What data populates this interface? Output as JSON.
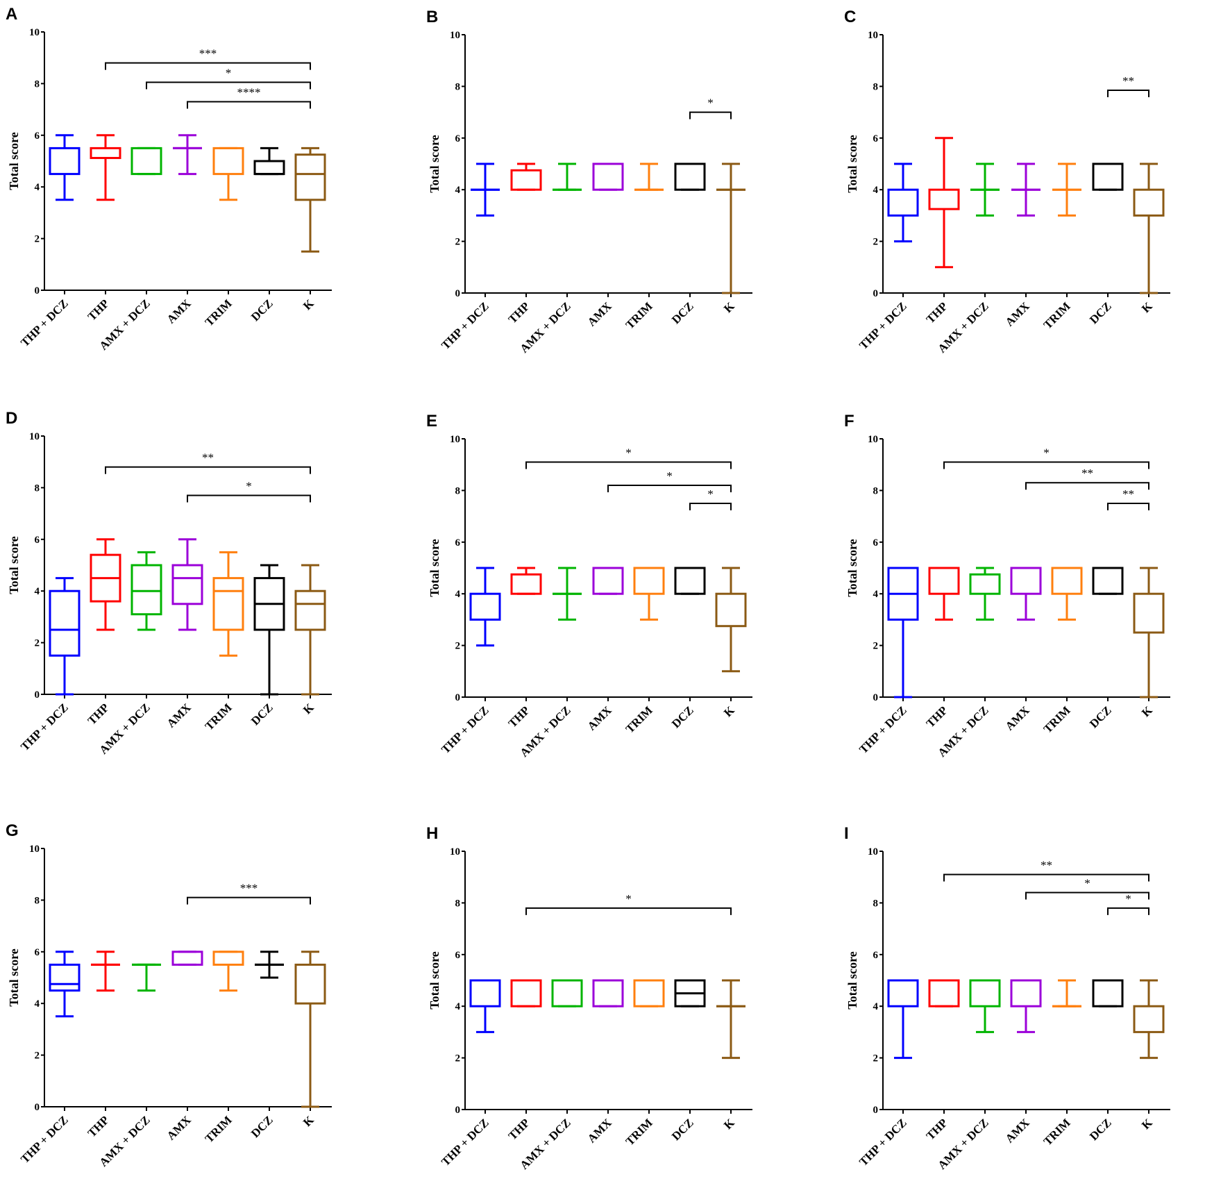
{
  "chart_data": {
    "type": "box",
    "categories": [
      "THP + DCZ",
      "THP",
      "AMX + DCZ",
      "AMX",
      "TRIM",
      "DCZ",
      "K"
    ],
    "colors": [
      "#0000ff",
      "#ff0000",
      "#00b400",
      "#9b00d9",
      "#ff7f0e",
      "#000000",
      "#8b5a14"
    ],
    "ylabel": "Total score",
    "ylim": [
      0,
      10
    ],
    "yticks": [
      0,
      2,
      4,
      6,
      8,
      10
    ],
    "box_format": "[min, q1, median, q3, max]; median null = not distinguishable",
    "panels": [
      {
        "label": "A",
        "boxes": [
          [
            3.5,
            4.5,
            null,
            5.5,
            6
          ],
          [
            3.5,
            5.12,
            null,
            5.5,
            6
          ],
          [
            4.5,
            4.5,
            null,
            5.5,
            5.5
          ],
          [
            4.5,
            5.5,
            5.5,
            5.5,
            6
          ],
          [
            3.5,
            4.5,
            null,
            5.5,
            5.5
          ],
          [
            4.5,
            4.5,
            4.5,
            5,
            5.5
          ],
          [
            1.5,
            3.5,
            4.5,
            5.25,
            5.5
          ]
        ],
        "brackets": [
          {
            "from": "THP",
            "to": "K",
            "y": 8.8,
            "text": "***"
          },
          {
            "from": "AMX + DCZ",
            "to": "K",
            "y": 8.05,
            "text": "*"
          },
          {
            "from": "AMX",
            "to": "K",
            "y": 7.3,
            "text": "****"
          }
        ]
      },
      {
        "label": "B",
        "boxes": [
          [
            3,
            4,
            4,
            4,
            5
          ],
          [
            4,
            4,
            null,
            4.75,
            5
          ],
          [
            4,
            4,
            4,
            4,
            5
          ],
          [
            4,
            4,
            null,
            5,
            5
          ],
          [
            4,
            4,
            4,
            4,
            5
          ],
          [
            4,
            4,
            null,
            5,
            5
          ],
          [
            0,
            4,
            4,
            4,
            5
          ]
        ],
        "brackets": [
          {
            "from": "DCZ",
            "to": "K",
            "y": 7,
            "text": "*"
          }
        ]
      },
      {
        "label": "C",
        "boxes": [
          [
            2,
            3,
            null,
            4,
            5
          ],
          [
            1,
            3.25,
            null,
            4,
            6
          ],
          [
            3,
            4,
            4,
            4,
            5
          ],
          [
            3,
            4,
            4,
            4,
            5
          ],
          [
            3,
            4,
            4,
            4,
            5
          ],
          [
            4,
            4,
            null,
            5,
            5
          ],
          [
            0,
            3,
            null,
            4,
            5
          ]
        ],
        "brackets": [
          {
            "from": "DCZ",
            "to": "K",
            "y": 7.85,
            "text": "**"
          }
        ]
      },
      {
        "label": "D",
        "boxes": [
          [
            0,
            1.5,
            2.5,
            4,
            4.5
          ],
          [
            2.5,
            3.6,
            4.5,
            5.4,
            6
          ],
          [
            2.5,
            3.1,
            4,
            5,
            5.5
          ],
          [
            2.5,
            3.5,
            4.5,
            5,
            6
          ],
          [
            1.5,
            2.5,
            4,
            4.5,
            5.5
          ],
          [
            0,
            2.5,
            3.5,
            4.5,
            5
          ],
          [
            0,
            2.5,
            3.5,
            4,
            5
          ]
        ],
        "brackets": [
          {
            "from": "THP",
            "to": "K",
            "y": 8.8,
            "text": "**"
          },
          {
            "from": "AMX",
            "to": "K",
            "y": 7.7,
            "text": "*"
          }
        ]
      },
      {
        "label": "E",
        "boxes": [
          [
            2,
            3,
            null,
            4,
            5
          ],
          [
            4,
            4,
            null,
            4.75,
            5
          ],
          [
            3,
            4,
            4,
            4,
            5
          ],
          [
            4,
            4,
            null,
            5,
            5
          ],
          [
            3,
            4,
            null,
            5,
            5
          ],
          [
            4,
            4,
            null,
            5,
            5
          ],
          [
            1,
            2.75,
            null,
            4,
            5
          ]
        ],
        "brackets": [
          {
            "from": "THP",
            "to": "K",
            "y": 9.1,
            "text": "*"
          },
          {
            "from": "AMX",
            "to": "K",
            "y": 8.2,
            "text": "*"
          },
          {
            "from": "DCZ",
            "to": "K",
            "y": 7.5,
            "text": "*"
          }
        ]
      },
      {
        "label": "F",
        "boxes": [
          [
            0,
            3,
            4,
            5,
            5
          ],
          [
            3,
            4,
            null,
            5,
            5
          ],
          [
            3,
            4,
            null,
            4.75,
            5
          ],
          [
            3,
            4,
            null,
            5,
            5
          ],
          [
            3,
            4,
            null,
            5,
            5
          ],
          [
            4,
            4,
            null,
            5,
            5
          ],
          [
            0,
            2.5,
            null,
            4,
            5
          ]
        ],
        "brackets": [
          {
            "from": "THP",
            "to": "K",
            "y": 9.1,
            "text": "*"
          },
          {
            "from": "AMX",
            "to": "K",
            "y": 8.3,
            "text": "**"
          },
          {
            "from": "DCZ",
            "to": "K",
            "y": 7.5,
            "text": "**"
          }
        ]
      },
      {
        "label": "G",
        "boxes": [
          [
            3.5,
            4.5,
            4.75,
            5.5,
            6
          ],
          [
            4.5,
            5.5,
            5.5,
            5.5,
            6
          ],
          [
            4.5,
            5.5,
            5.5,
            5.5,
            5.5
          ],
          [
            5.5,
            5.5,
            null,
            6,
            6
          ],
          [
            4.5,
            5.5,
            null,
            6,
            6
          ],
          [
            5,
            5.5,
            5.5,
            5.5,
            6
          ],
          [
            0,
            4,
            null,
            5.5,
            6
          ]
        ],
        "brackets": [
          {
            "from": "AMX",
            "to": "K",
            "y": 8.1,
            "text": "***"
          }
        ]
      },
      {
        "label": "H",
        "boxes": [
          [
            3,
            4,
            null,
            5,
            5
          ],
          [
            4,
            4,
            null,
            5,
            5
          ],
          [
            4,
            4,
            null,
            5,
            5
          ],
          [
            4,
            4,
            null,
            5,
            5
          ],
          [
            4,
            4,
            null,
            5,
            5
          ],
          [
            4,
            4,
            4.5,
            5,
            5
          ],
          [
            2,
            4,
            4,
            4,
            5
          ]
        ],
        "brackets": [
          {
            "from": "THP",
            "to": "K",
            "y": 7.8,
            "text": "*"
          }
        ]
      },
      {
        "label": "I",
        "boxes": [
          [
            2,
            4,
            null,
            5,
            5
          ],
          [
            4,
            4,
            null,
            5,
            5
          ],
          [
            3,
            4,
            null,
            5,
            5
          ],
          [
            3,
            4,
            null,
            5,
            5
          ],
          [
            4,
            4,
            4,
            4,
            5
          ],
          [
            4,
            4,
            null,
            5,
            5
          ],
          [
            2,
            3,
            null,
            4,
            5
          ]
        ],
        "brackets": [
          {
            "from": "THP",
            "to": "K",
            "y": 9.1,
            "text": "**"
          },
          {
            "from": "AMX",
            "to": "K",
            "y": 8.4,
            "text": "*"
          },
          {
            "from": "DCZ",
            "to": "K",
            "y": 7.8,
            "text": "*"
          }
        ]
      }
    ]
  }
}
